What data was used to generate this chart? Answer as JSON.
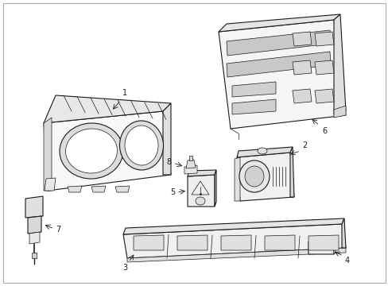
{
  "background_color": "#ffffff",
  "line_color": "#1a1a1a",
  "label_color": "#111111",
  "figsize": [
    4.89,
    3.6
  ],
  "dpi": 100,
  "border": true
}
